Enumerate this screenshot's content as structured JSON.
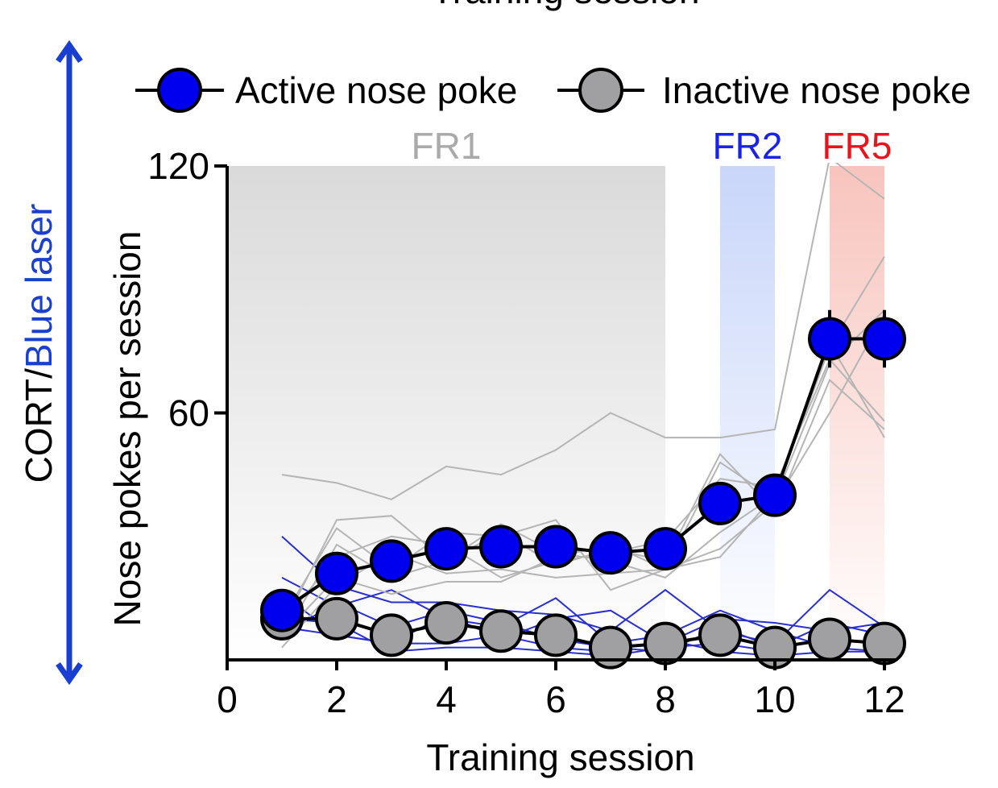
{
  "chart_data": {
    "type": "line",
    "top_cut_label": "Training session",
    "xlabel": "Training session",
    "ylabel": "Nose pokes per session",
    "side_label": {
      "part1": "CORT/",
      "part2": "Blue laser"
    },
    "xlim": [
      0,
      12.5
    ],
    "ylim": [
      0,
      120
    ],
    "x_ticks": [
      "0",
      "2",
      "4",
      "6",
      "8",
      "10",
      "12"
    ],
    "y_ticks": [
      "60",
      "120"
    ],
    "phases": [
      {
        "label": "FR1",
        "color": "#aaaaaa",
        "x_range": [
          0,
          8
        ]
      },
      {
        "label": "FR2",
        "color": "#1a22e6",
        "x_range": [
          9,
          10
        ]
      },
      {
        "label": "FR5",
        "color": "#e8141a",
        "x_range": [
          11,
          12
        ]
      }
    ],
    "x": [
      1,
      2,
      3,
      4,
      5,
      6,
      7,
      8,
      9,
      10,
      11,
      12
    ],
    "series": [
      {
        "name": "Active nose poke",
        "color": "#0000ee",
        "mean": [
          12,
          21,
          24,
          27,
          27.5,
          27.5,
          26,
          27,
          38,
          40,
          78,
          78
        ],
        "individuals": [
          [
            45,
            43,
            39,
            47,
            45,
            51,
            60,
            54,
            54,
            56,
            122,
            112
          ],
          [
            8,
            34,
            35,
            24,
            33,
            26,
            24,
            20,
            31,
            40,
            76,
            98
          ],
          [
            10,
            32,
            22,
            31,
            30,
            34,
            17,
            22,
            48,
            39,
            72,
            85
          ],
          [
            5,
            28,
            20,
            24,
            31,
            23,
            27,
            24,
            50,
            36,
            68,
            56
          ],
          [
            3,
            18,
            26,
            21,
            22,
            20,
            21,
            22,
            27,
            38,
            60,
            84
          ],
          [
            6,
            20,
            16,
            19,
            19,
            25,
            28,
            22,
            25,
            40,
            77,
            54
          ],
          [
            9,
            25,
            30,
            28,
            20,
            24,
            26,
            29,
            44,
            42,
            73,
            58
          ]
        ]
      },
      {
        "name": "Inactive nose poke",
        "color": "#a0a0a2",
        "mean": [
          10,
          10,
          6,
          9,
          7,
          6,
          3,
          4,
          6,
          3,
          5,
          4
        ],
        "individuals": [
          [
            30,
            18,
            14,
            14,
            12,
            11,
            7,
            17,
            7,
            4,
            17,
            8
          ],
          [
            20,
            13,
            17,
            10,
            8,
            15,
            4,
            6,
            12,
            7,
            3,
            2
          ],
          [
            8,
            6,
            4,
            11,
            5,
            10,
            12,
            4,
            10,
            9,
            7,
            9
          ],
          [
            16,
            6,
            4,
            4,
            6,
            3,
            2,
            5,
            2,
            1,
            2,
            2
          ],
          [
            10,
            9,
            2,
            3,
            3,
            2,
            1,
            3,
            4,
            2,
            6,
            3
          ],
          [
            6,
            14,
            8,
            12,
            9,
            5,
            3,
            2,
            8,
            3,
            9,
            6
          ]
        ]
      }
    ]
  }
}
